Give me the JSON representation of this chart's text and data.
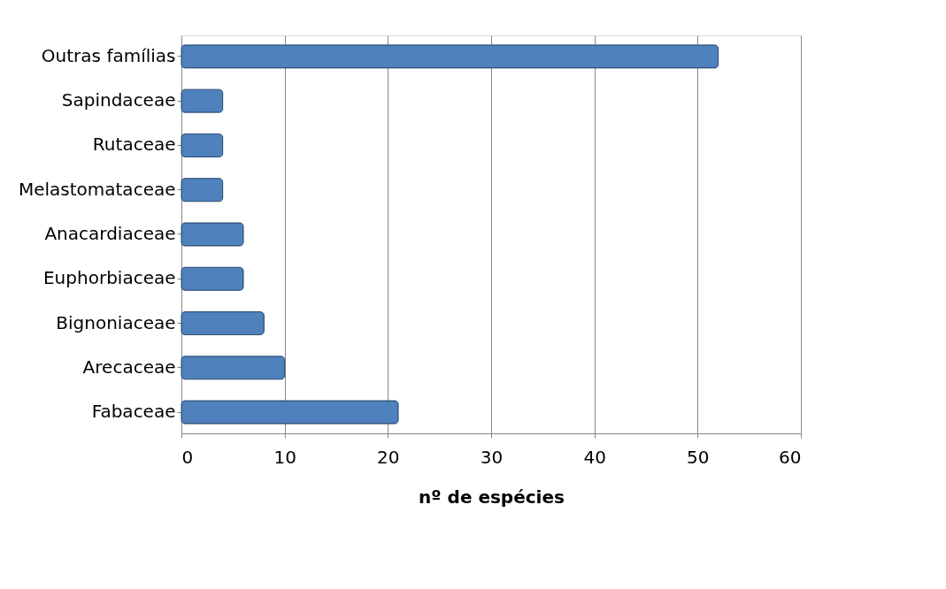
{
  "chart_data": {
    "type": "bar",
    "orientation": "horizontal",
    "xlabel": "nº de espécies",
    "categories": [
      "Outras famílias",
      "Sapindaceae",
      "Rutaceae",
      "Melastomataceae",
      "Anacardiaceae",
      "Euphorbiaceae",
      "Bignoniaceae",
      "Arecaceae",
      "Fabaceae"
    ],
    "values": [
      52,
      4,
      4,
      4,
      6,
      6,
      8,
      10,
      21
    ],
    "color": "#4f81bd",
    "xlim": [
      0,
      60
    ],
    "xticks": [
      0,
      10,
      20,
      30,
      40,
      50,
      60
    ],
    "grid": "x"
  }
}
